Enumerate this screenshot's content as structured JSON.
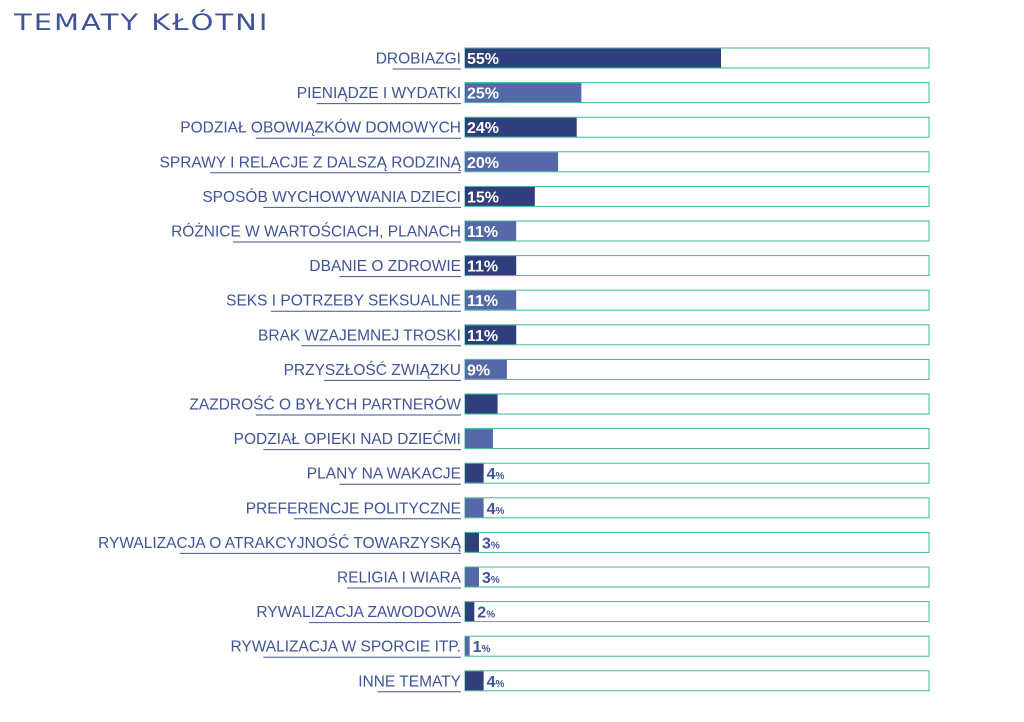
{
  "title": "Tematy kłótni",
  "colors": {
    "title": "#3f5396",
    "label": "#3f5396",
    "track_border": "#3fb996",
    "bar_dark": "#2f3f7c",
    "bar_light": "#5568a8",
    "value_on_bar": "#ffffff",
    "value_outside": "#3f5396"
  },
  "chart_data": {
    "type": "bar",
    "orientation": "horizontal",
    "xlim": [
      0,
      100
    ],
    "categories": [
      "DROBIAZGI",
      "PIENIĄDZE I WYDATKI",
      "PODZIAŁ OBOWIĄZKÓW DOMOWYCH",
      "SPRAWY I RELACJE Z DALSZĄ RODZINĄ",
      "SPOSÓB WYCHOWYWANIA DZIECI",
      "RÓŻNICE W WARTOŚCIACH, PLANACH",
      "DBANIE O ZDROWIE",
      "SEKS I POTRZEBY SEKSUALNE",
      "BRAK WZAJEMNEJ TROSKI",
      "PRZYSZŁOŚĆ ZWIĄZKU",
      "ZAZDROŚĆ O BYŁYCH PARTNERÓW",
      "PODZIAŁ OPIEKI NAD DZIEĆMI",
      "PLANY NA WAKACJE",
      "PREFERENCJE POLITYCZNE",
      "RYWALIZACJA O ATRAKCYJNOŚĆ TOWARZYSKĄ",
      "RELIGIA I WIARA",
      "RYWALIZACJA ZAWODOWA",
      "RYWALIZACJA W SPORCIE ITP.",
      "INNE TEMATY"
    ],
    "values": [
      55,
      25,
      24,
      20,
      15,
      11,
      11,
      11,
      11,
      9,
      7,
      6,
      4,
      4,
      3,
      3,
      2,
      1,
      4
    ],
    "value_unit": "%"
  }
}
